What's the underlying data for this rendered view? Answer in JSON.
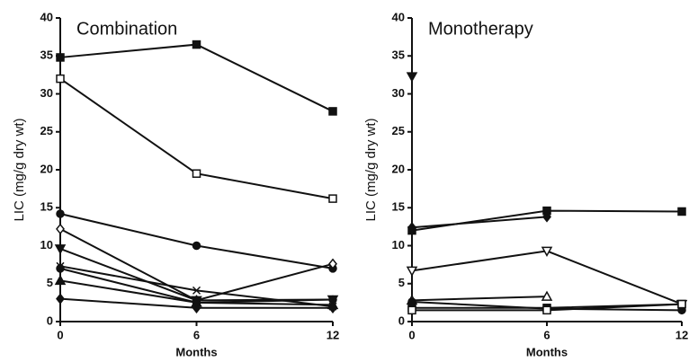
{
  "chart_data": [
    {
      "type": "line",
      "title": "Combination",
      "xlabel": "Months",
      "ylabel": "LIC (mg/g dry wt)",
      "color": "#111111",
      "x": [
        0,
        6,
        12
      ],
      "xlim": [
        0,
        12
      ],
      "xticks": [
        0,
        6,
        12
      ],
      "ylim": [
        0,
        40
      ],
      "yticks": [
        0,
        5,
        10,
        15,
        20,
        25,
        30,
        35,
        40
      ],
      "series": [
        {
          "marker": "square",
          "values": [
            34.8,
            36.5,
            27.7
          ]
        },
        {
          "marker": "open-square",
          "values": [
            32,
            19.5,
            16.2
          ]
        },
        {
          "marker": "circle",
          "values": [
            14.2,
            10,
            7
          ]
        },
        {
          "marker": "open-diamond",
          "values": [
            12.2,
            2.8,
            7.6
          ]
        },
        {
          "marker": "triangle-down",
          "values": [
            9.6,
            2.8,
            2.9
          ]
        },
        {
          "marker": "x",
          "values": [
            7.3,
            4.1,
            2
          ]
        },
        {
          "marker": "circle",
          "values": [
            7,
            2.5,
            2.9
          ]
        },
        {
          "marker": "triangle",
          "values": [
            5.4,
            2.5,
            2.2
          ]
        },
        {
          "marker": "diamond",
          "values": [
            3,
            1.8,
            1.8
          ]
        }
      ]
    },
    {
      "type": "line",
      "title": "Monotherapy",
      "xlabel": "Months",
      "ylabel": "LIC (mg/g dry wt)",
      "color": "#111111",
      "x": [
        0,
        6,
        12
      ],
      "xlim": [
        0,
        12
      ],
      "xticks": [
        0,
        6,
        12
      ],
      "ylim": [
        0,
        40
      ],
      "yticks": [
        0,
        5,
        10,
        15,
        20,
        25,
        30,
        35,
        40
      ],
      "series": [
        {
          "marker": "square",
          "values": [
            12,
            14.6,
            14.5
          ]
        },
        {
          "marker": "diamond",
          "values": [
            12.4,
            13.8,
            null
          ]
        },
        {
          "marker": "triangle-down",
          "values": [
            32.3,
            null,
            null
          ]
        },
        {
          "marker": "open-triangle-down",
          "values": [
            6.7,
            9.3,
            2.3
          ]
        },
        {
          "marker": "open-triangle",
          "values": [
            2.8,
            3.3,
            null
          ]
        },
        {
          "marker": "square",
          "values": [
            1.8,
            1.8,
            2.3
          ]
        },
        {
          "marker": "circle",
          "values": [
            2.6,
            1.7,
            1.5
          ]
        },
        {
          "marker": "open-square",
          "values": [
            1.5,
            1.5,
            2.3
          ]
        }
      ]
    }
  ]
}
